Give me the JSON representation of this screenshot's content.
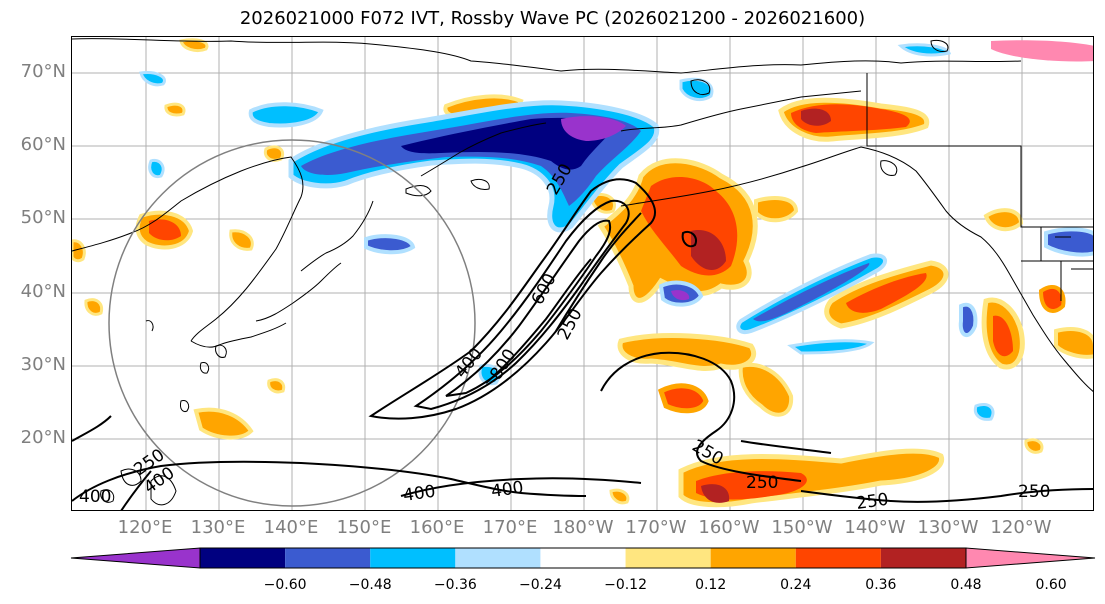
{
  "title": "2026021000 F072 IVT, Rossby Wave PC (2026021200 - 2026021600)",
  "lat_labels": [
    "70°N",
    "60°N",
    "50°N",
    "40°N",
    "30°N",
    "20°N"
  ],
  "lon_labels": [
    "120°E",
    "130°E",
    "140°E",
    "150°E",
    "160°E",
    "170°E",
    "180°W",
    "170°W",
    "160°W",
    "150°W",
    "140°W",
    "130°W",
    "120°W"
  ],
  "colorbar": {
    "tick_labels": [
      "−0.60",
      "−0.48",
      "−0.36",
      "−0.24",
      "−0.12",
      "0.12",
      "0.24",
      "0.36",
      "0.48",
      "0.60"
    ],
    "colors": [
      "#9933cc",
      "#000080",
      "#3b5bd0",
      "#00bfff",
      "#b0e0ff",
      "#ffffff",
      "#ffe680",
      "#ffa500",
      "#ff4500",
      "#b22222",
      "#ff88b0"
    ]
  },
  "contour_labels": [
    "400",
    "600",
    "250",
    "400",
    "800",
    "250",
    "250",
    "400",
    "400",
    "250",
    "250",
    "250",
    "400",
    "250"
  ]
}
